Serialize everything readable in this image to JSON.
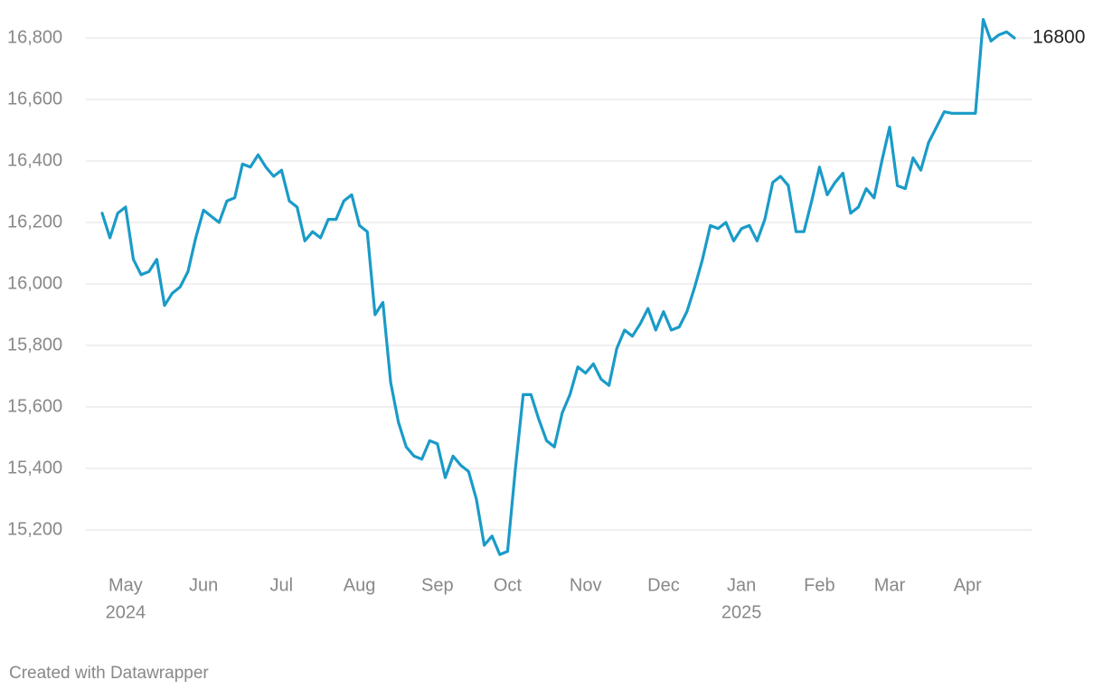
{
  "chart_data": {
    "type": "line",
    "color": "#1a9bc8",
    "categories": [
      null,
      null,
      null,
      "May",
      null,
      null,
      null,
      null,
      null,
      null,
      null,
      null,
      null,
      "Jun",
      null,
      null,
      null,
      null,
      null,
      null,
      null,
      null,
      null,
      "Jul",
      null,
      null,
      null,
      null,
      null,
      null,
      null,
      null,
      null,
      "Aug",
      null,
      null,
      null,
      null,
      null,
      null,
      null,
      null,
      null,
      "Sep",
      null,
      null,
      null,
      null,
      null,
      null,
      null,
      null,
      "Oct",
      null,
      null,
      null,
      null,
      null,
      null,
      null,
      null,
      null,
      "Nov",
      null,
      null,
      null,
      null,
      null,
      null,
      null,
      null,
      null,
      "Dec",
      null,
      null,
      null,
      null,
      null,
      null,
      null,
      null,
      null,
      "Jan",
      null,
      null,
      null,
      null,
      null,
      null,
      null,
      null,
      null,
      "Feb",
      null,
      null,
      null,
      null,
      null,
      null,
      null,
      null,
      "Mar",
      null,
      null,
      null,
      null,
      null,
      null,
      null,
      null,
      null,
      "Apr",
      null,
      null,
      null,
      null,
      null,
      null
    ],
    "year_labels": [
      {
        "month": "May",
        "label": "2024"
      },
      {
        "month": "Jan",
        "label": "2025"
      }
    ],
    "values": [
      16230,
      16150,
      16230,
      16250,
      16080,
      16030,
      16040,
      16080,
      15930,
      15970,
      15990,
      16040,
      16150,
      16240,
      16220,
      16200,
      16270,
      16280,
      16390,
      16380,
      16420,
      16380,
      16350,
      16370,
      16270,
      16250,
      16140,
      16170,
      16150,
      16210,
      16210,
      16270,
      16290,
      16190,
      16170,
      15900,
      15940,
      15680,
      15550,
      15470,
      15440,
      15430,
      15490,
      15480,
      15370,
      15440,
      15410,
      15390,
      15300,
      15150,
      15180,
      15120,
      15130,
      15400,
      15640,
      15640,
      15560,
      15490,
      15470,
      15580,
      15640,
      15730,
      15710,
      15740,
      15690,
      15670,
      15790,
      15850,
      15830,
      15870,
      15920,
      15850,
      15910,
      15850,
      15860,
      15910,
      15990,
      16080,
      16190,
      16180,
      16200,
      16140,
      16180,
      16190,
      16140,
      16210,
      16330,
      16350,
      16320,
      16170,
      16170,
      16270,
      16380,
      16290,
      16330,
      16360,
      16230,
      16250,
      16310,
      16280,
      16400,
      16510,
      16320,
      16310,
      16410,
      16370,
      16460,
      16510,
      16560,
      16555,
      16555,
      16555,
      16555,
      16860,
      16790,
      16810,
      16820,
      16800
    ],
    "ylim": [
      15100,
      16900
    ],
    "yticks": [
      {
        "value": 15200,
        "label": "15,200"
      },
      {
        "value": 15400,
        "label": "15,400"
      },
      {
        "value": 15600,
        "label": "15,600"
      },
      {
        "value": 15800,
        "label": "15,800"
      },
      {
        "value": 16000,
        "label": "16,000"
      },
      {
        "value": 16200,
        "label": "16,200"
      },
      {
        "value": 16400,
        "label": "16,400"
      },
      {
        "value": 16600,
        "label": "16,600"
      },
      {
        "value": 16800,
        "label": "16,800"
      }
    ],
    "grid": true,
    "footer": "Created with Datawrapper"
  }
}
